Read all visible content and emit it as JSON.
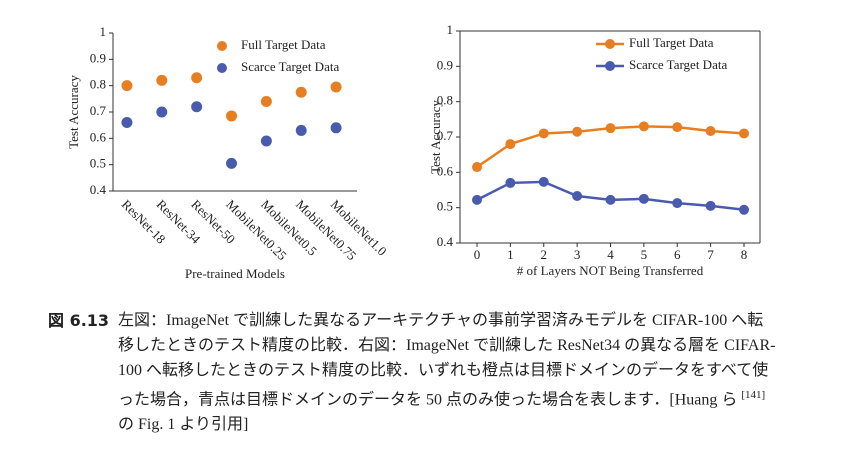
{
  "chart_data": [
    {
      "type": "dot",
      "x_label": "Pre-trained Models",
      "y_label": "Test Accuracy",
      "categories": [
        "ResNet-18",
        "ResNet-34",
        "ResNet-50",
        "MobileNet0.25",
        "MobileNet0.5",
        "MobileNet0.75",
        "MobileNet1.0"
      ],
      "series": [
        {
          "name": "Full Target Data",
          "color": "#e87e22",
          "values": [
            0.8,
            0.82,
            0.83,
            0.685,
            0.74,
            0.775,
            0.795
          ]
        },
        {
          "name": "Scarce Target Data",
          "color": "#4a5bae",
          "values": [
            0.66,
            0.7,
            0.72,
            0.505,
            0.59,
            0.63,
            0.64
          ]
        }
      ],
      "ylim": [
        0.4,
        1
      ],
      "yticks": [
        0.4,
        0.5,
        0.6,
        0.7,
        0.8,
        0.9,
        1
      ],
      "legend": "upper right"
    },
    {
      "type": "line",
      "x_label": "# of Layers NOT Being Transferred",
      "y_label": "Test Accuracy",
      "x": [
        0,
        1,
        2,
        3,
        4,
        5,
        6,
        7,
        8
      ],
      "series": [
        {
          "name": "Full Target Data",
          "color": "#e87e22",
          "values": [
            0.615,
            0.68,
            0.71,
            0.715,
            0.725,
            0.73,
            0.728,
            0.717,
            0.71
          ]
        },
        {
          "name": "Scarce Target Data",
          "color": "#4a5bae",
          "values": [
            0.522,
            0.57,
            0.573,
            0.533,
            0.522,
            0.525,
            0.513,
            0.505,
            0.494
          ]
        }
      ],
      "xlim": [
        0,
        8
      ],
      "xticks": [
        0,
        1,
        2,
        3,
        4,
        5,
        6,
        7,
        8
      ],
      "ylim": [
        0.4,
        1
      ],
      "yticks": [
        0.4,
        0.5,
        0.6,
        0.7,
        0.8,
        0.9,
        1
      ],
      "legend": "upper right"
    }
  ],
  "caption": {
    "label": "図 6.13",
    "text": "左図：ImageNet で訓練した異なるアーキテクチャの事前学習済みモデルを CIFAR-100 へ転移したときのテスト精度の比較．右図：ImageNet で訓練した ResNet34 の異なる層を CIFAR-100 へ転移したときのテスト精度の比較．いずれも橙点は目標ドメインのデータをすべて使った場合，青点は目標ドメインのデータを 50 点のみ使った場合を表します．[Huang ら",
    "citation": "[141]",
    "text_after": "の Fig. 1 より引用]"
  }
}
